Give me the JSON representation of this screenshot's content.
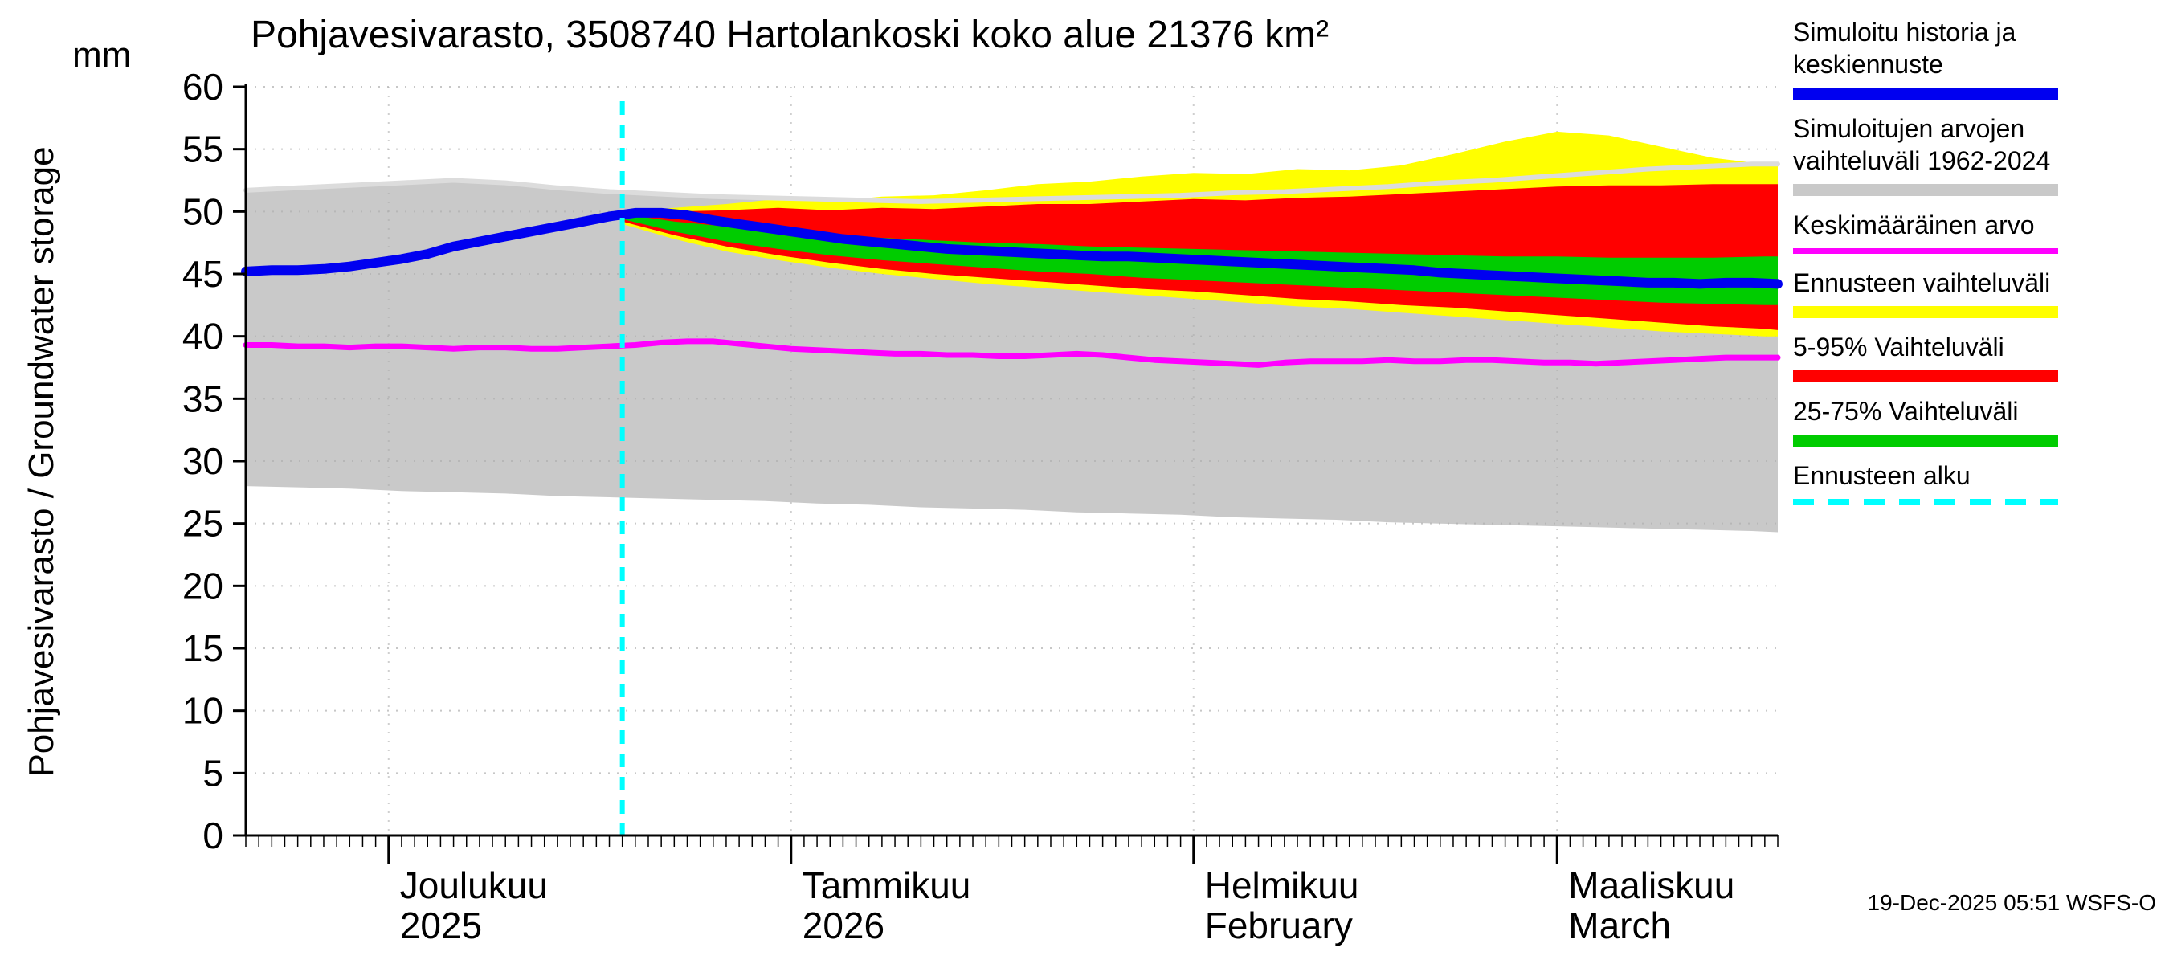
{
  "title": "Pohjavesivarasto, 3508740 Hartolankoski koko alue 21376 km²",
  "y_axis": {
    "label": "Pohjavesivarasto / Groundwater storage",
    "unit": "mm"
  },
  "footer": {
    "timestamp": "19-Dec-2025 05:51 WSFS-O"
  },
  "legend": {
    "items": [
      {
        "name": "simulated-history",
        "lines": [
          "Simuloitu historia ja",
          "keskiennuste"
        ],
        "swatch": "line",
        "color": "#0000f0"
      },
      {
        "name": "simulated-range",
        "lines": [
          "Simuloitujen arvojen",
          "vaihteluväli 1962-2024"
        ],
        "swatch": "band",
        "color": "#c9c9c9"
      },
      {
        "name": "average-value",
        "lines": [
          "Keskimääräinen arvo"
        ],
        "swatch": "thinline",
        "color": "#ff00ff"
      },
      {
        "name": "forecast-range",
        "lines": [
          "Ennusteen vaihteluväli"
        ],
        "swatch": "band",
        "color": "#ffff00"
      },
      {
        "name": "range-5-95",
        "lines": [
          "5-95% Vaihteluväli"
        ],
        "swatch": "band",
        "color": "#ff0000"
      },
      {
        "name": "range-25-75",
        "lines": [
          "25-75% Vaihteluväli"
        ],
        "swatch": "band",
        "color": "#00cc00"
      },
      {
        "name": "forecast-start",
        "lines": [
          "Ennusteen alku"
        ],
        "swatch": "dashed",
        "color": "#00ffff"
      }
    ]
  },
  "chart_data": {
    "type": "line",
    "title": "Pohjavesivarasto, 3508740 Hartolankoski koko alue 21376 km²",
    "ylabel": "Pohjavesivarasto / Groundwater storage (mm)",
    "ylim": [
      0,
      60
    ],
    "yticks": [
      0,
      5,
      10,
      15,
      20,
      25,
      30,
      35,
      40,
      45,
      50,
      55,
      60
    ],
    "x_domain_days": [
      0,
      118
    ],
    "x_epoch": "days from 20-Nov-2025",
    "forecast_start_day": 29,
    "months": [
      {
        "label": "Joulukuu",
        "sublabel": "2025",
        "start_day": 11
      },
      {
        "label": "Tammikuu",
        "sublabel": "2026",
        "start_day": 42
      },
      {
        "label": "Helmikuu",
        "sublabel": "February",
        "start_day": 73
      },
      {
        "label": "Maaliskuu",
        "sublabel": "March",
        "start_day": 101
      }
    ],
    "series": [
      {
        "name": "historical-range-1962-2024",
        "type": "band",
        "color": "#c9c9c9",
        "days": [
          0,
          4,
          8,
          12,
          16,
          20,
          24,
          28,
          32,
          36,
          40,
          44,
          48,
          52,
          56,
          60,
          64,
          68,
          72,
          76,
          80,
          84,
          88,
          92,
          96,
          100,
          104,
          108,
          112,
          116,
          118
        ],
        "upper": [
          51.7,
          51.9,
          52.1,
          52.3,
          52.5,
          52.3,
          51.9,
          51.6,
          51.4,
          51.2,
          51.1,
          51.0,
          50.9,
          50.8,
          50.9,
          51.0,
          51.1,
          51.2,
          51.3,
          51.5,
          51.6,
          51.8,
          52.0,
          52.3,
          52.5,
          52.8,
          53.1,
          53.4,
          53.6,
          53.8,
          53.8
        ],
        "lower": [
          28.0,
          27.9,
          27.8,
          27.6,
          27.5,
          27.4,
          27.2,
          27.1,
          27.0,
          26.9,
          26.8,
          26.6,
          26.5,
          26.3,
          26.2,
          26.1,
          25.9,
          25.8,
          25.7,
          25.5,
          25.4,
          25.3,
          25.1,
          25.0,
          24.9,
          24.8,
          24.7,
          24.6,
          24.5,
          24.4,
          24.3
        ]
      },
      {
        "name": "forecast-range-minmax",
        "type": "band",
        "color": "#ffff00",
        "days": [
          29,
          33,
          37,
          41,
          45,
          49,
          53,
          57,
          61,
          65,
          69,
          73,
          77,
          81,
          85,
          89,
          93,
          97,
          101,
          105,
          109,
          113,
          117,
          118
        ],
        "upper": [
          50.0,
          50.3,
          50.6,
          51.0,
          50.8,
          51.2,
          51.3,
          51.7,
          52.2,
          52.4,
          52.8,
          53.1,
          53.0,
          53.4,
          53.3,
          53.7,
          54.6,
          55.6,
          56.4,
          56.1,
          55.2,
          54.3,
          53.8,
          53.8
        ],
        "lower": [
          49.0,
          47.8,
          46.8,
          46.1,
          45.5,
          45.0,
          44.6,
          44.2,
          43.9,
          43.6,
          43.3,
          43.0,
          42.7,
          42.4,
          42.2,
          41.9,
          41.6,
          41.3,
          41.0,
          40.7,
          40.4,
          40.2,
          40.0,
          40.0
        ]
      },
      {
        "name": "range-5-95",
        "type": "band",
        "color": "#ff0000",
        "days": [
          29,
          33,
          37,
          41,
          45,
          49,
          53,
          57,
          61,
          65,
          69,
          73,
          77,
          81,
          85,
          89,
          93,
          97,
          101,
          105,
          109,
          113,
          117,
          118
        ],
        "upper": [
          49.9,
          50.0,
          50.1,
          50.3,
          50.1,
          50.3,
          50.2,
          50.4,
          50.6,
          50.6,
          50.8,
          51.0,
          50.9,
          51.1,
          51.2,
          51.4,
          51.6,
          51.8,
          52.0,
          52.1,
          52.1,
          52.2,
          52.2,
          52.2
        ],
        "lower": [
          49.2,
          48.1,
          47.2,
          46.5,
          45.9,
          45.4,
          45.0,
          44.7,
          44.4,
          44.1,
          43.8,
          43.6,
          43.3,
          43.0,
          42.8,
          42.5,
          42.3,
          42.0,
          41.7,
          41.4,
          41.1,
          40.8,
          40.6,
          40.5
        ]
      },
      {
        "name": "range-25-75",
        "type": "band",
        "color": "#00cc00",
        "days": [
          29,
          33,
          37,
          41,
          45,
          49,
          53,
          57,
          61,
          65,
          69,
          73,
          77,
          81,
          85,
          89,
          93,
          97,
          101,
          105,
          109,
          113,
          117,
          118
        ],
        "upper": [
          49.8,
          49.2,
          48.8,
          48.4,
          48.1,
          47.9,
          47.7,
          47.5,
          47.4,
          47.2,
          47.1,
          47.0,
          46.9,
          46.8,
          46.7,
          46.6,
          46.5,
          46.4,
          46.4,
          46.3,
          46.3,
          46.3,
          46.4,
          46.4
        ],
        "lower": [
          49.4,
          48.4,
          47.6,
          47.0,
          46.5,
          46.1,
          45.8,
          45.5,
          45.2,
          45.0,
          44.7,
          44.5,
          44.3,
          44.1,
          43.9,
          43.7,
          43.5,
          43.3,
          43.1,
          42.9,
          42.7,
          42.6,
          42.5,
          42.5
        ]
      },
      {
        "name": "historical-range-upper-edge",
        "type": "line",
        "color": "#dcdcdc",
        "width": 6,
        "days": [
          0,
          4,
          8,
          12,
          16,
          20,
          24,
          28,
          32,
          36,
          40,
          44,
          48,
          52,
          56,
          60,
          64,
          68,
          72,
          76,
          80,
          84,
          88,
          92,
          96,
          100,
          104,
          108,
          112,
          116,
          118
        ],
        "values": [
          51.7,
          51.9,
          52.1,
          52.3,
          52.5,
          52.3,
          51.9,
          51.6,
          51.4,
          51.2,
          51.1,
          51.0,
          50.9,
          50.8,
          50.9,
          51.0,
          51.1,
          51.2,
          51.3,
          51.5,
          51.6,
          51.8,
          52.0,
          52.3,
          52.5,
          52.8,
          53.1,
          53.4,
          53.6,
          53.8,
          53.8
        ]
      },
      {
        "name": "long-term-average",
        "type": "line",
        "color": "#ff00ff",
        "width": 7,
        "days": [
          0,
          2,
          4,
          6,
          8,
          10,
          12,
          14,
          16,
          18,
          20,
          22,
          24,
          26,
          28,
          30,
          32,
          34,
          36,
          38,
          40,
          42,
          44,
          46,
          48,
          50,
          52,
          54,
          56,
          58,
          60,
          62,
          64,
          66,
          68,
          70,
          72,
          74,
          76,
          78,
          80,
          82,
          84,
          86,
          88,
          90,
          92,
          94,
          96,
          98,
          100,
          102,
          104,
          106,
          108,
          110,
          112,
          114,
          116,
          118
        ],
        "values": [
          39.3,
          39.3,
          39.2,
          39.2,
          39.1,
          39.2,
          39.2,
          39.1,
          39.0,
          39.1,
          39.1,
          39.0,
          39.0,
          39.1,
          39.2,
          39.3,
          39.5,
          39.6,
          39.6,
          39.4,
          39.2,
          39.0,
          38.9,
          38.8,
          38.7,
          38.6,
          38.6,
          38.5,
          38.5,
          38.4,
          38.4,
          38.5,
          38.6,
          38.5,
          38.3,
          38.1,
          38.0,
          37.9,
          37.8,
          37.7,
          37.9,
          38.0,
          38.0,
          38.0,
          38.1,
          38.0,
          38.0,
          38.1,
          38.1,
          38.0,
          37.9,
          37.9,
          37.8,
          37.9,
          38.0,
          38.1,
          38.2,
          38.3,
          38.3,
          38.3
        ]
      },
      {
        "name": "simulated-history-and-mean-forecast",
        "type": "line",
        "color": "#0000f0",
        "width": 12,
        "days": [
          0,
          2,
          4,
          6,
          8,
          10,
          12,
          14,
          16,
          18,
          20,
          22,
          24,
          26,
          28,
          30,
          32,
          34,
          36,
          38,
          40,
          42,
          44,
          46,
          48,
          50,
          52,
          54,
          56,
          58,
          60,
          62,
          64,
          66,
          68,
          70,
          72,
          74,
          76,
          78,
          80,
          82,
          84,
          86,
          88,
          90,
          92,
          94,
          96,
          98,
          100,
          102,
          104,
          106,
          108,
          110,
          112,
          114,
          116,
          118
        ],
        "values": [
          45.2,
          45.3,
          45.3,
          45.4,
          45.6,
          45.9,
          46.2,
          46.6,
          47.2,
          47.6,
          48.0,
          48.4,
          48.8,
          49.2,
          49.6,
          49.9,
          49.9,
          49.7,
          49.3,
          49.0,
          48.7,
          48.4,
          48.1,
          47.8,
          47.6,
          47.4,
          47.2,
          47.0,
          46.9,
          46.8,
          46.7,
          46.6,
          46.5,
          46.4,
          46.4,
          46.3,
          46.2,
          46.1,
          46.0,
          45.9,
          45.8,
          45.7,
          45.6,
          45.5,
          45.4,
          45.3,
          45.1,
          45.0,
          44.9,
          44.8,
          44.7,
          44.6,
          44.5,
          44.4,
          44.3,
          44.3,
          44.2,
          44.3,
          44.3,
          44.2
        ]
      },
      {
        "name": "forecast-start-line",
        "type": "vline",
        "color": "#00ffff",
        "day": 29
      }
    ]
  }
}
